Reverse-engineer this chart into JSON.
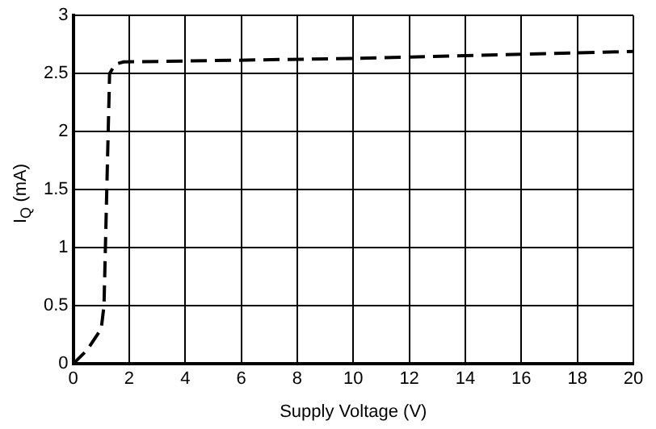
{
  "chart_data": {
    "type": "line",
    "xlabel": "Supply Voltage (V)",
    "ylabel": "I$_{Q}$ (mA)",
    "series": [
      {
        "color": "#000000",
        "x": [
          0,
          0.5,
          1.0,
          1.1,
          1.2,
          1.3,
          1.5,
          1.8,
          10,
          20
        ],
        "values": [
          0,
          0.12,
          0.3,
          0.5,
          1.5,
          2.5,
          2.58,
          2.6,
          2.63,
          2.69
        ]
      }
    ],
    "xlim": [
      0,
      20
    ],
    "xticks": [
      0,
      2,
      4,
      6,
      8,
      10,
      12,
      14,
      16,
      18,
      20
    ],
    "ylim": [
      0,
      3
    ],
    "yticks": [
      0,
      0.5,
      1,
      1.5,
      2,
      2.5,
      3
    ],
    "grid": true,
    "legend": false,
    "marker": "none",
    "line_style": "dashed"
  }
}
